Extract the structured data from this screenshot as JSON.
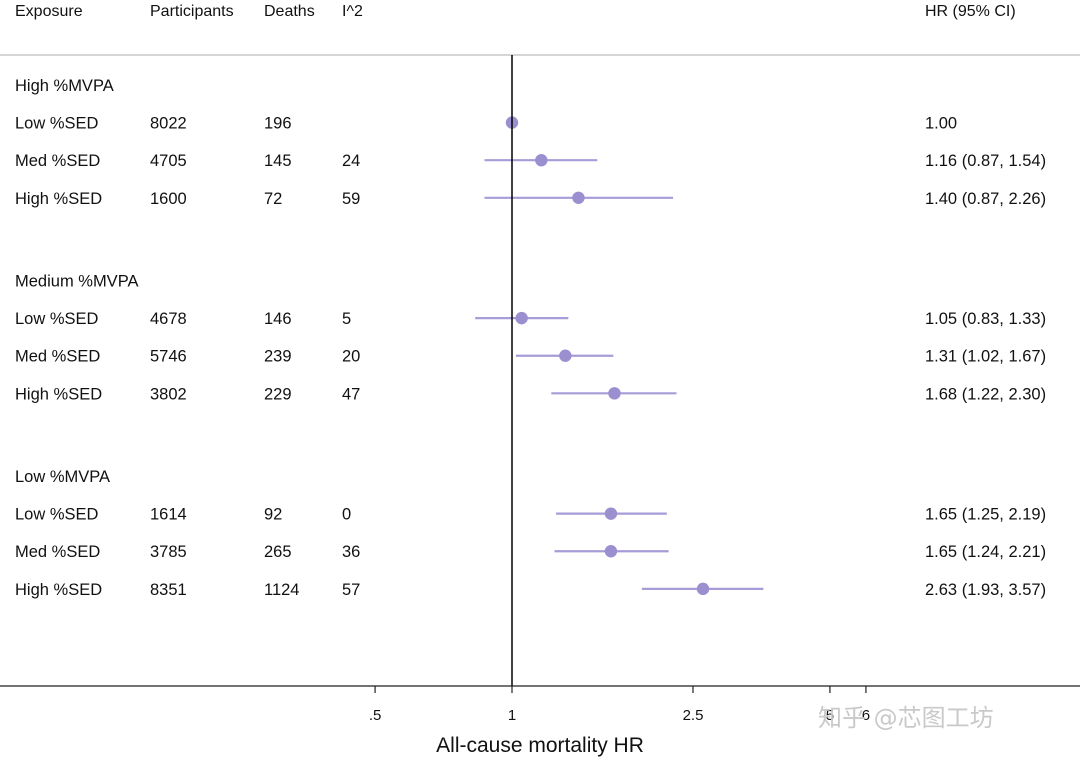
{
  "chart_data": {
    "type": "forest",
    "columns": [
      "Exposure",
      "Participants",
      "Deaths",
      "I^2",
      "HR (95% CI)"
    ],
    "groups": [
      {
        "label": "High %MVPA",
        "rows": [
          {
            "exposure": "Low %SED",
            "participants": "8022",
            "deaths": "196",
            "i2": "",
            "hr": 1.0,
            "lo": 1.0,
            "hi": 1.0,
            "hr_text": "1.00"
          },
          {
            "exposure": "Med %SED",
            "participants": "4705",
            "deaths": "145",
            "i2": "24",
            "hr": 1.16,
            "lo": 0.87,
            "hi": 1.54,
            "hr_text": "1.16 (0.87, 1.54)"
          },
          {
            "exposure": "High %SED",
            "participants": "1600",
            "deaths": "72",
            "i2": "59",
            "hr": 1.4,
            "lo": 0.87,
            "hi": 2.26,
            "hr_text": "1.40 (0.87, 2.26)"
          }
        ]
      },
      {
        "label": "Medium %MVPA",
        "rows": [
          {
            "exposure": "Low %SED",
            "participants": "4678",
            "deaths": "146",
            "i2": "5",
            "hr": 1.05,
            "lo": 0.83,
            "hi": 1.33,
            "hr_text": "1.05 (0.83, 1.33)"
          },
          {
            "exposure": "Med %SED",
            "participants": "5746",
            "deaths": "239",
            "i2": "20",
            "hr": 1.31,
            "lo": 1.02,
            "hi": 1.67,
            "hr_text": "1.31 (1.02, 1.67)"
          },
          {
            "exposure": "High %SED",
            "participants": "3802",
            "deaths": "229",
            "i2": "47",
            "hr": 1.68,
            "lo": 1.22,
            "hi": 2.3,
            "hr_text": "1.68 (1.22, 2.30)"
          }
        ]
      },
      {
        "label": "Low %MVPA",
        "rows": [
          {
            "exposure": "Low %SED",
            "participants": "1614",
            "deaths": "92",
            "i2": "0",
            "hr": 1.65,
            "lo": 1.25,
            "hi": 2.19,
            "hr_text": "1.65 (1.25, 2.19)"
          },
          {
            "exposure": "Med %SED",
            "participants": "3785",
            "deaths": "265",
            "i2": "36",
            "hr": 1.65,
            "lo": 1.24,
            "hi": 2.21,
            "hr_text": "1.65 (1.24, 2.21)"
          },
          {
            "exposure": "High %SED",
            "participants": "8351",
            "deaths": "1124",
            "i2": "57",
            "hr": 2.63,
            "lo": 1.93,
            "hi": 3.57,
            "hr_text": "2.63 (1.93, 3.57)"
          }
        ]
      }
    ],
    "x_axis": {
      "label": "All-cause mortality HR",
      "scale": "log",
      "reference": 1,
      "ticks": [
        {
          "value": 0.5,
          "label": ".5"
        },
        {
          "value": 1,
          "label": "1"
        },
        {
          "value": 2.5,
          "label": "2.5"
        },
        {
          "value": 5,
          "label": "5"
        },
        {
          "value": 6,
          "label": "6"
        }
      ]
    },
    "marker_color": "#9b8fd0",
    "ci_color": "#a79cd8"
  },
  "watermark": "知乎 @芯图工坊"
}
